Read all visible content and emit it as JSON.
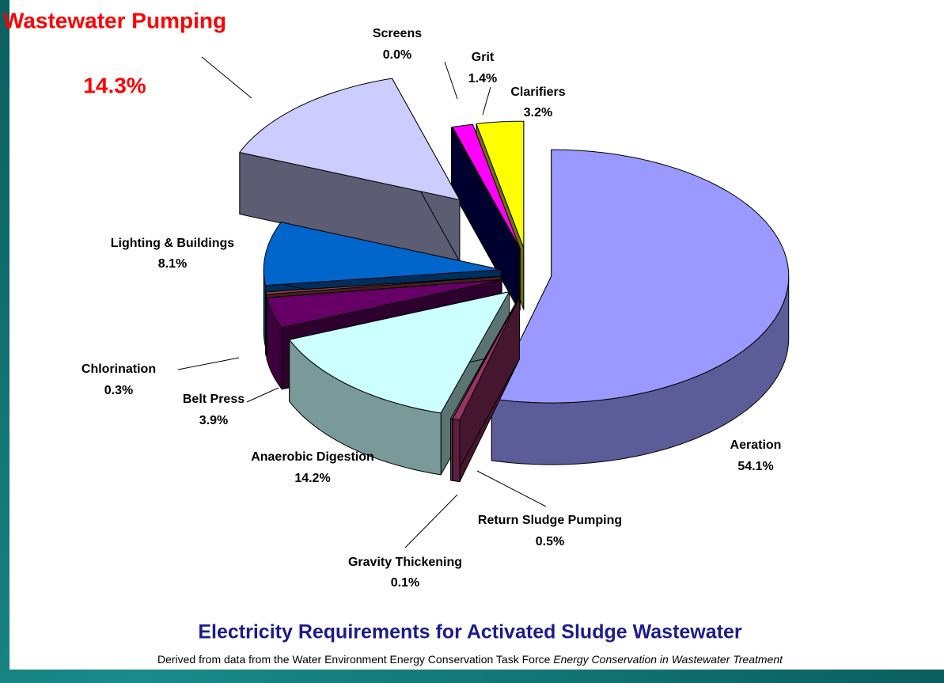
{
  "chart_data": {
    "type": "pie3d",
    "title": "Electricity Requirements for Activated Sludge Wastewater",
    "subtitle": "Derived from data from the Water Environment Energy Conservation Task Force",
    "source_title": "Energy Conservation in Wastewater Treatment",
    "categories": [
      "Aeration",
      "Return Sludge Pumping",
      "Gravity Thickening",
      "Anaerobic Digestion",
      "Belt Press",
      "Chlorination",
      "Lighting & Buildings",
      "Wastewater Pumping",
      "Screens",
      "Grit",
      "Clarifiers"
    ],
    "values": [
      54.1,
      0.5,
      0.1,
      14.2,
      3.9,
      0.3,
      8.1,
      14.3,
      0,
      1.4,
      3.2
    ],
    "value_labels": [
      "54.1%",
      "0.5%",
      "0.1%",
      "14.2%",
      "3.9%",
      "0.3%",
      "8.1%",
      "14.3%",
      "0.0%",
      "1.4%",
      "3.2%"
    ],
    "colors": [
      "#9999ff",
      "#993366",
      "#999977",
      "#ccffff",
      "#660066",
      "#994444",
      "#0066cc",
      "#ccccff",
      "#000066",
      "#ff00ff",
      "#ffff00"
    ],
    "highlight": "Wastewater Pumping",
    "highlight_color": "#ff0000"
  }
}
